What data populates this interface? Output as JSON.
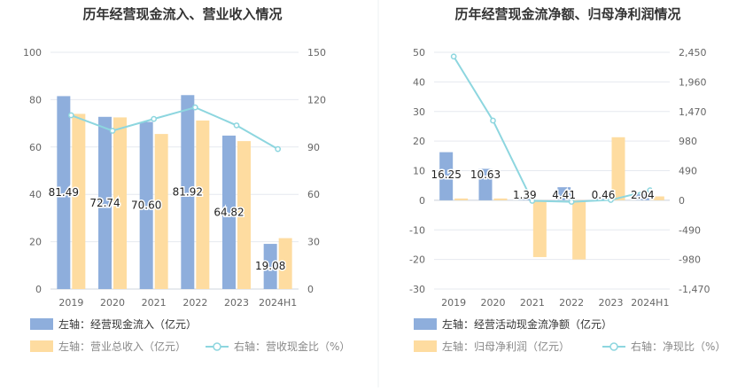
{
  "charts": [
    {
      "title": "历年经营现金流入、营业收入情况",
      "categories": [
        "2019",
        "2020",
        "2021",
        "2022",
        "2023",
        "2024H1"
      ],
      "left_ticks": [
        "100",
        "80",
        "60",
        "40",
        "20",
        "0"
      ],
      "right_ticks": [
        "150",
        "120",
        "90",
        "60",
        "30",
        "0"
      ],
      "legend": [
        {
          "label": "左轴：经营现金流入（亿元）",
          "type": "bar",
          "color": "#8eaedc"
        },
        {
          "label": "左轴：营业总收入（亿元）",
          "type": "bar",
          "color": "#fedca0"
        },
        {
          "label": "右轴：营收现金比（%）",
          "type": "line",
          "color": "#8dd6df"
        }
      ],
      "data_labels": [
        "81.49",
        "72.74",
        "70.60",
        "81.92",
        "64.82",
        "19.08"
      ]
    },
    {
      "title": "历年经营现金流净额、归母净利润情况",
      "categories": [
        "2019",
        "2020",
        "2021",
        "2022",
        "2023",
        "2024H1"
      ],
      "left_ticks": [
        "50",
        "40",
        "30",
        "20",
        "10",
        "0",
        "-10",
        "-20",
        "-30"
      ],
      "right_ticks": [
        "2,450",
        "1,960",
        "1,470",
        "980",
        "490",
        "0",
        "-490",
        "-980",
        "-1,470"
      ],
      "legend": [
        {
          "label": "左轴：经营活动现金流净额（亿元）",
          "type": "bar",
          "color": "#8eaedc"
        },
        {
          "label": "左轴：归母净利润（亿元）",
          "type": "bar",
          "color": "#fedca0"
        },
        {
          "label": "右轴：净现比（%）",
          "type": "line",
          "color": "#8dd6df"
        }
      ],
      "data_labels": [
        "16.25",
        "10.63",
        "1.39",
        "4.41",
        "0.46",
        "2.04"
      ]
    }
  ],
  "chart_data": [
    {
      "type": "bar",
      "title": "历年经营现金流入、营业收入情况",
      "categories": [
        "2019",
        "2020",
        "2021",
        "2022",
        "2023",
        "2024H1"
      ],
      "ylim": [
        0,
        100
      ],
      "y2lim": [
        0,
        150
      ],
      "series": [
        {
          "name": "左轴：经营现金流入（亿元）",
          "axis": "left",
          "type": "bar",
          "color": "#8eaedc",
          "values": [
            81.49,
            72.74,
            70.6,
            81.92,
            64.82,
            19.08
          ]
        },
        {
          "name": "左轴：营业总收入（亿元）",
          "axis": "left",
          "type": "bar",
          "color": "#fedca0",
          "values": [
            74.0,
            72.5,
            65.5,
            71.2,
            62.5,
            21.5
          ]
        },
        {
          "name": "右轴：营收现金比（%）",
          "axis": "right",
          "type": "line",
          "color": "#8dd6df",
          "values": [
            110.1,
            100.3,
            107.8,
            115.1,
            103.7,
            88.7
          ]
        }
      ],
      "legend_position": "bottom",
      "grid": true
    },
    {
      "type": "bar",
      "title": "历年经营现金流净额、归母净利润情况",
      "categories": [
        "2019",
        "2020",
        "2021",
        "2022",
        "2023",
        "2024H1"
      ],
      "ylim": [
        -30,
        50
      ],
      "y2lim": [
        -1470,
        2450
      ],
      "series": [
        {
          "name": "左轴：经营活动现金流净额（亿元）",
          "axis": "left",
          "type": "bar",
          "color": "#8eaedc",
          "values": [
            16.25,
            10.63,
            1.39,
            4.41,
            0.46,
            2.04
          ]
        },
        {
          "name": "左轴：归母净利润（亿元）",
          "axis": "left",
          "type": "bar",
          "color": "#fedca0",
          "values": [
            0.6,
            0.6,
            -19.2,
            -20.0,
            21.3,
            1.3
          ]
        },
        {
          "name": "右轴：净现比（%）",
          "axis": "right",
          "type": "line",
          "color": "#8dd6df",
          "values": [
            2380,
            1320,
            -10,
            -25,
            5,
            165
          ]
        }
      ],
      "legend_position": "bottom",
      "grid": true
    }
  ]
}
